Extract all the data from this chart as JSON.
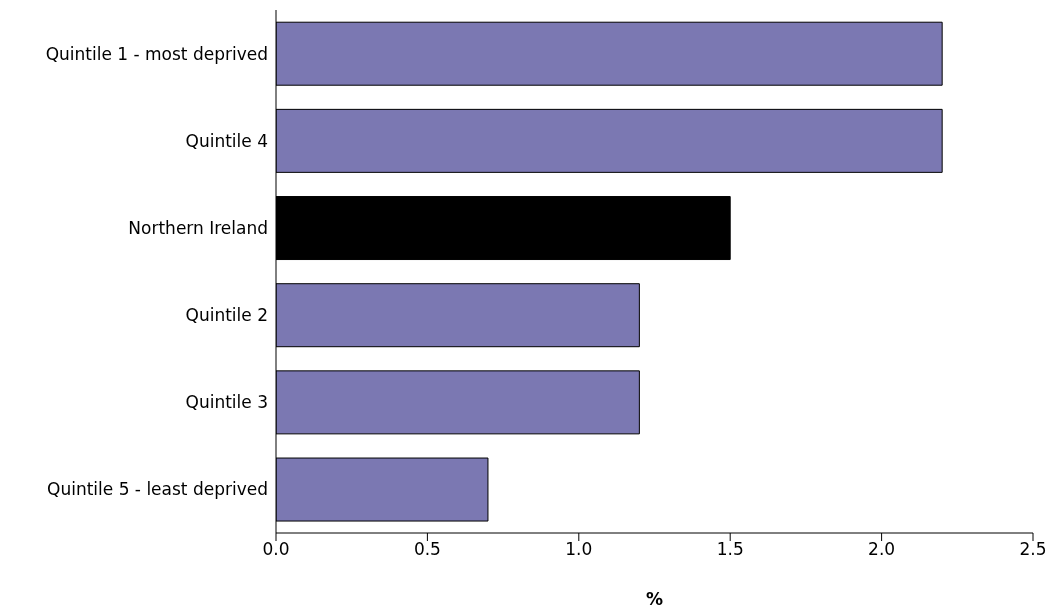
{
  "chart_data": {
    "type": "bar",
    "orientation": "horizontal",
    "xlabel": "%",
    "categories": [
      "Quintile 1 - most deprived",
      "Quintile 4",
      "Northern Ireland",
      "Quintile 2",
      "Quintile 3",
      "Quintile 5 - least deprived"
    ],
    "values": [
      2.2,
      2.2,
      1.5,
      1.2,
      1.2,
      0.7
    ],
    "colors": [
      "#7b78b2",
      "#7b78b2",
      "#000000",
      "#7b78b2",
      "#7b78b2",
      "#7b78b2"
    ],
    "xlim": [
      0,
      2.5
    ],
    "xticks": [
      {
        "value": 0,
        "label": "0.0"
      },
      {
        "value": 0.5,
        "label": "0.5"
      },
      {
        "value": 1,
        "label": "1.0"
      },
      {
        "value": 1.5,
        "label": "1.5"
      },
      {
        "value": 2,
        "label": "2.0"
      },
      {
        "value": 2.5,
        "label": "2.5"
      }
    ],
    "grid": false,
    "legend": false
  }
}
